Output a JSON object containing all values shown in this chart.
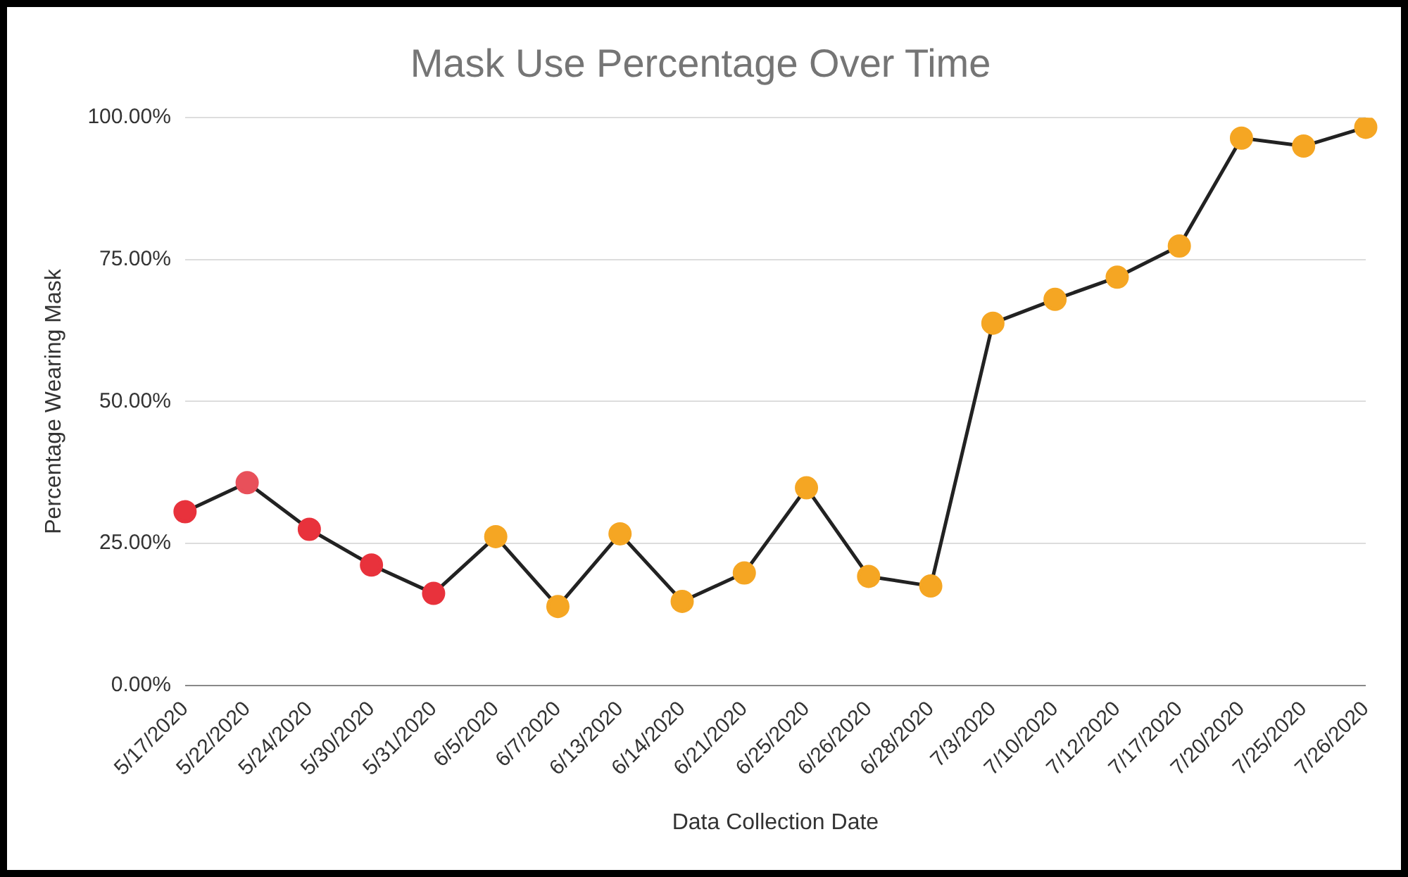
{
  "chart_data": {
    "type": "line",
    "title": "Mask Use Percentage Over Time",
    "xlabel": "Data Collection Date",
    "ylabel": "Percentage Wearing Mask",
    "categories": [
      "5/17/2020",
      "5/22/2020",
      "5/24/2020",
      "5/30/2020",
      "5/31/2020",
      "6/5/2020",
      "6/7/2020",
      "6/13/2020",
      "6/14/2020",
      "6/21/2020",
      "6/25/2020",
      "6/26/2020",
      "6/28/2020",
      "7/3/2020",
      "7/10/2020",
      "7/12/2020",
      "7/17/2020",
      "7/20/2020",
      "7/25/2020",
      "7/26/2020"
    ],
    "series": [
      {
        "color": "#222222",
        "colors": [
          "#e8323c",
          "#e8505a",
          "#e8323c",
          "#e8323c",
          "#e8323c",
          "#f5a623",
          "#f5a623",
          "#f5a623",
          "#f5a623",
          "#f5a623",
          "#f5a623",
          "#f5a623",
          "#f5a623",
          "#f5a623",
          "#f5a623",
          "#f5a623",
          "#f5a623",
          "#f5a623",
          "#f5a623",
          "#f5a623"
        ],
        "values": [
          30.6,
          35.7,
          27.5,
          21.2,
          16.2,
          26.2,
          13.9,
          26.7,
          14.8,
          19.8,
          34.8,
          19.2,
          17.5,
          63.8,
          68,
          71.9,
          77.4,
          96.4,
          95,
          98.3
        ]
      }
    ],
    "ylim": [
      0,
      100
    ],
    "yticks": [
      {
        "value": 0,
        "label": "0.00%"
      },
      {
        "value": 25,
        "label": "25.00%"
      },
      {
        "value": 50,
        "label": "50.00%"
      },
      {
        "value": 75,
        "label": "75.00%"
      },
      {
        "value": 100,
        "label": "100.00%"
      }
    ],
    "grid": "y",
    "legend": false,
    "marker": "circle",
    "line_style": "solid"
  }
}
